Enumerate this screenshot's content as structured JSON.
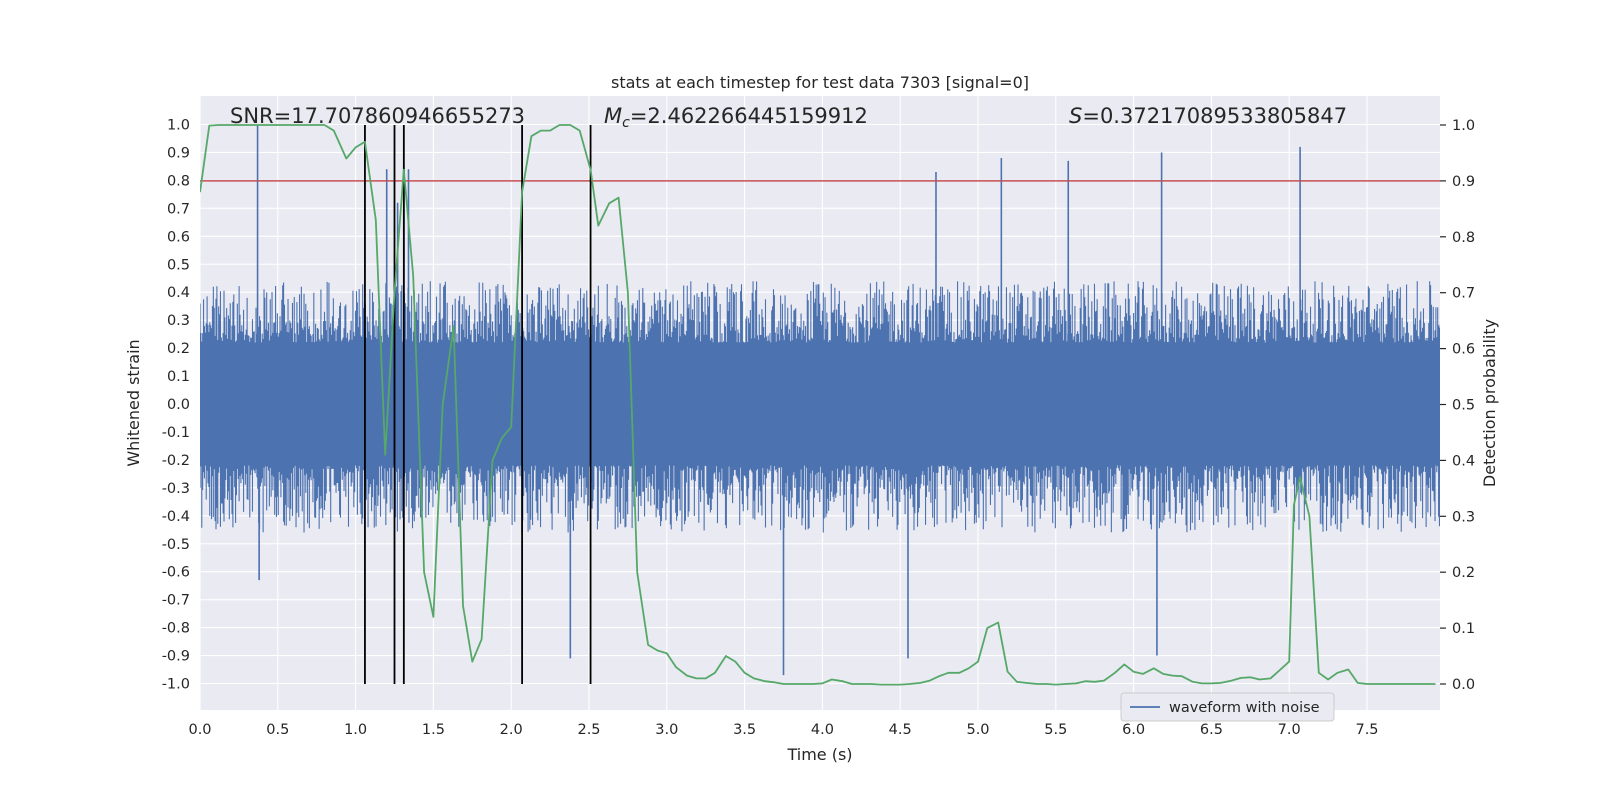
{
  "chart_data": {
    "type": "line",
    "title": "stats at each timestep for test data 7303 [signal=0]",
    "xlabel": "Time (s)",
    "ylabel": "Whitened strain",
    "y2label": "Detection probability",
    "xlim": [
      0,
      8
    ],
    "ylim": [
      -1.1,
      1.1
    ],
    "y2lim": [
      -0.05,
      1.05
    ],
    "xticks": [
      "0.0",
      "0.5",
      "1.0",
      "1.5",
      "2.0",
      "2.5",
      "3.0",
      "3.5",
      "4.0",
      "4.5",
      "5.0",
      "5.5",
      "6.0",
      "6.5",
      "7.0",
      "7.5"
    ],
    "yticks": [
      "-1.0",
      "-0.9",
      "-0.8",
      "-0.7",
      "-0.6",
      "-0.5",
      "-0.4",
      "-0.3",
      "-0.2",
      "-0.1",
      "0.0",
      "0.1",
      "0.2",
      "0.3",
      "0.4",
      "0.5",
      "0.6",
      "0.7",
      "0.8",
      "0.9",
      "1.0"
    ],
    "y2ticks": [
      "0.0",
      "0.1",
      "0.2",
      "0.3",
      "0.4",
      "0.5",
      "0.6",
      "0.7",
      "0.8",
      "0.9",
      "1.0"
    ],
    "grid": true,
    "legend": {
      "placement": "bottom-right",
      "entries": [
        "waveform with noise"
      ]
    },
    "annotations": {
      "snr_label": "SNR",
      "snr_value": "=17.707860946655273",
      "mc_symbol": "M",
      "mc_sub": "c",
      "mc_value": "=2.462266445159912",
      "s_symbol": "S",
      "s_value": "=0.37217089533805847"
    },
    "threshold": {
      "axis": "right",
      "value": 0.9,
      "color": "#c44e52"
    },
    "vlines": [
      1.06,
      1.25,
      1.31,
      2.07,
      2.51
    ],
    "series": [
      {
        "name": "waveform with noise",
        "axis": "left",
        "color": "#4c72b0",
        "kind": "noise",
        "envelope_typical": 0.4,
        "peaks": [
          {
            "x": 0.37,
            "y": 1.0
          },
          {
            "x": 0.38,
            "y": -0.63
          },
          {
            "x": 1.2,
            "y": 0.84
          },
          {
            "x": 1.27,
            "y": 0.72
          },
          {
            "x": 1.31,
            "y": 0.85
          },
          {
            "x": 1.34,
            "y": 0.84
          },
          {
            "x": 2.38,
            "y": -0.91
          },
          {
            "x": 3.75,
            "y": -0.97
          },
          {
            "x": 4.73,
            "y": 0.83
          },
          {
            "x": 4.55,
            "y": -0.91
          },
          {
            "x": 5.15,
            "y": 0.88
          },
          {
            "x": 5.58,
            "y": 0.87
          },
          {
            "x": 6.18,
            "y": 0.9
          },
          {
            "x": 6.15,
            "y": -0.9
          },
          {
            "x": 7.07,
            "y": 0.92
          }
        ]
      },
      {
        "name": "Detection probability",
        "axis": "right",
        "color": "#55a868",
        "x": [
          0.0,
          0.06,
          0.12,
          0.2,
          0.3,
          0.4,
          0.5,
          0.6,
          0.7,
          0.8,
          0.86,
          0.94,
          1.0,
          1.06,
          1.13,
          1.19,
          1.25,
          1.31,
          1.37,
          1.44,
          1.5,
          1.56,
          1.63,
          1.69,
          1.75,
          1.81,
          1.88,
          1.94,
          2.0,
          2.07,
          2.13,
          2.19,
          2.25,
          2.31,
          2.38,
          2.44,
          2.51,
          2.56,
          2.63,
          2.69,
          2.75,
          2.81,
          2.88,
          2.94,
          3.0,
          3.06,
          3.13,
          3.19,
          3.25,
          3.31,
          3.38,
          3.44,
          3.5,
          3.56,
          3.63,
          3.69,
          3.75,
          3.81,
          3.88,
          3.94,
          4.0,
          4.06,
          4.13,
          4.19,
          4.25,
          4.31,
          4.38,
          4.44,
          4.5,
          4.56,
          4.63,
          4.69,
          4.75,
          4.81,
          4.88,
          4.94,
          5.0,
          5.06,
          5.13,
          5.19,
          5.25,
          5.31,
          5.38,
          5.44,
          5.5,
          5.56,
          5.63,
          5.69,
          5.75,
          5.81,
          5.88,
          5.94,
          6.0,
          6.06,
          6.13,
          6.19,
          6.25,
          6.31,
          6.38,
          6.44,
          6.5,
          6.56,
          6.63,
          6.69,
          6.75,
          6.81,
          6.88,
          6.94,
          7.0,
          7.03,
          7.07,
          7.13,
          7.19,
          7.25,
          7.31,
          7.38,
          7.44,
          7.5,
          7.56,
          7.63,
          7.69,
          7.75,
          7.81,
          7.88,
          7.94
        ],
        "y": [
          0.88,
          0.999,
          1.0,
          1.0,
          1.0,
          1.0,
          1.0,
          1.0,
          1.0,
          1.0,
          0.99,
          0.94,
          0.96,
          0.97,
          0.83,
          0.41,
          0.7,
          0.92,
          0.73,
          0.2,
          0.12,
          0.5,
          0.64,
          0.14,
          0.04,
          0.08,
          0.4,
          0.44,
          0.46,
          0.88,
          0.98,
          0.99,
          0.99,
          1.0,
          1.0,
          0.99,
          0.92,
          0.82,
          0.86,
          0.87,
          0.7,
          0.2,
          0.07,
          0.06,
          0.055,
          0.03,
          0.015,
          0.01,
          0.01,
          0.02,
          0.05,
          0.04,
          0.02,
          0.01,
          0.005,
          0.003,
          0.0,
          0.0,
          0.0,
          0.0,
          0.001,
          0.008,
          0.005,
          0.0,
          0.0,
          0.0,
          -0.001,
          -0.001,
          -0.001,
          0.0,
          0.002,
          0.006,
          0.014,
          0.02,
          0.02,
          0.028,
          0.04,
          0.1,
          0.11,
          0.022,
          0.004,
          0.002,
          0.0,
          0.0,
          -0.001,
          0.0,
          0.001,
          0.005,
          0.004,
          0.006,
          0.02,
          0.035,
          0.022,
          0.018,
          0.028,
          0.018,
          0.015,
          0.014,
          0.004,
          0.001,
          0.001,
          0.002,
          0.006,
          0.011,
          0.012,
          0.008,
          0.01,
          0.025,
          0.04,
          0.32,
          0.37,
          0.3,
          0.02,
          0.008,
          0.02,
          0.026,
          0.002,
          0.0,
          0.0,
          0.0,
          0.0,
          0.0,
          0.0,
          0.0,
          0.0
        ]
      }
    ]
  }
}
